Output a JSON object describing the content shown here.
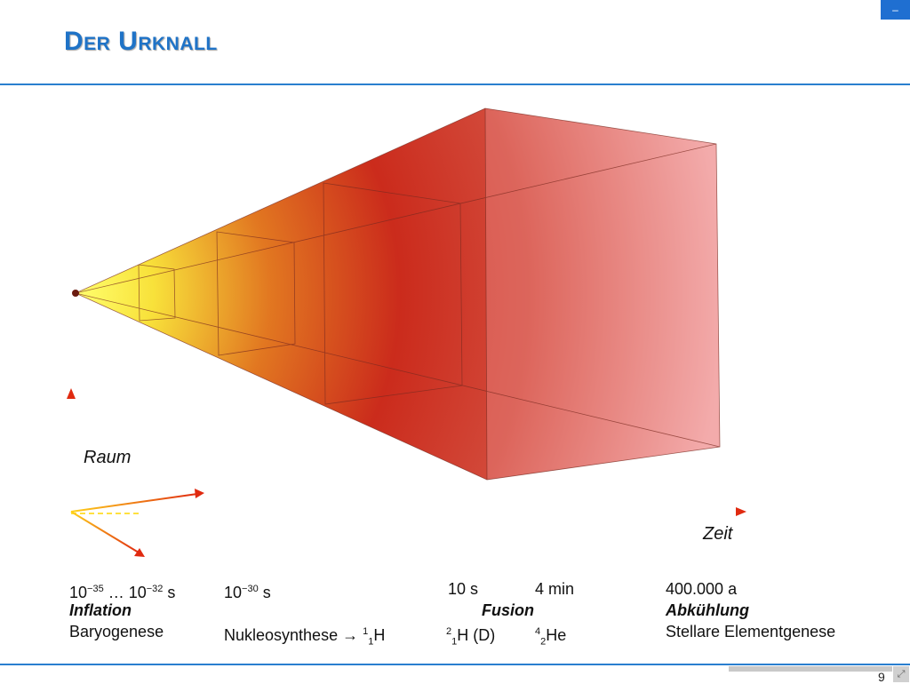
{
  "slide": {
    "title": "Der Urknall",
    "page_number": "9",
    "nav_button": "–"
  },
  "diagram": {
    "axis_space_label": "Raum",
    "axis_time_label": "Zeit"
  },
  "timeline": {
    "c1": {
      "time_a": "10",
      "exp_a": "−35",
      "mid": " … 10",
      "exp_b": "−32",
      "unit": " s",
      "phase": "Inflation",
      "process": "Baryogenese"
    },
    "c2": {
      "time": "10",
      "exp": "−30",
      "unit": " s",
      "process_text": "Nukleosynthese → ",
      "iso_sup": "1",
      "iso_sub": "1",
      "iso_el": "H"
    },
    "c3": {
      "time": "10 s",
      "d_sup": "2",
      "d_sub": "1",
      "d_el": "H (D)"
    },
    "c4": {
      "time": "4 min",
      "he_sup": "4",
      "he_sub": "2",
      "he_el": "He"
    },
    "fusion": "Fusion",
    "c5": {
      "time": "400.000 a",
      "phase": "Abkühlung",
      "process": "Stellare Elementgenese"
    }
  }
}
